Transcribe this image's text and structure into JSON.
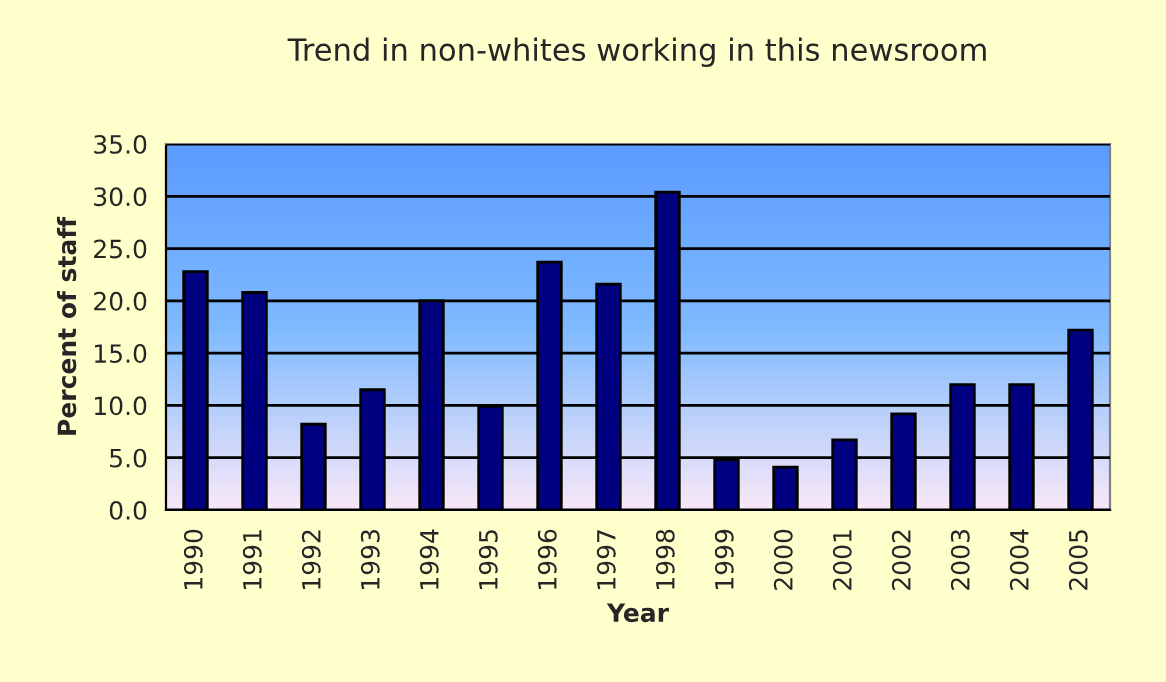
{
  "chart_data": {
    "type": "bar",
    "title": "Trend in non-whites working in this newsroom",
    "xlabel": "Year",
    "ylabel": "Percent of staff",
    "categories": [
      "1990",
      "1991",
      "1992",
      "1993",
      "1994",
      "1995",
      "1996",
      "1997",
      "1998",
      "1999",
      "2000",
      "2001",
      "2002",
      "2003",
      "2004",
      "2005"
    ],
    "series": [
      {
        "color": "#000080",
        "values": [
          22.8,
          20.8,
          8.2,
          11.5,
          20.0,
          9.9,
          23.7,
          21.6,
          30.4,
          4.8,
          4.1,
          6.7,
          9.2,
          12.0,
          12.0,
          17.2
        ]
      }
    ],
    "ylim": [
      0,
      35
    ],
    "yticks": [
      {
        "value": 0,
        "label": "0.0"
      },
      {
        "value": 5,
        "label": "5.0"
      },
      {
        "value": 10,
        "label": "10.0"
      },
      {
        "value": 15,
        "label": "15.0"
      },
      {
        "value": 20,
        "label": "20.0"
      },
      {
        "value": 25,
        "label": "25.0"
      },
      {
        "value": 30,
        "label": "30.0"
      },
      {
        "value": 35,
        "label": "35.0"
      }
    ],
    "grid": "y",
    "legend": false
  }
}
